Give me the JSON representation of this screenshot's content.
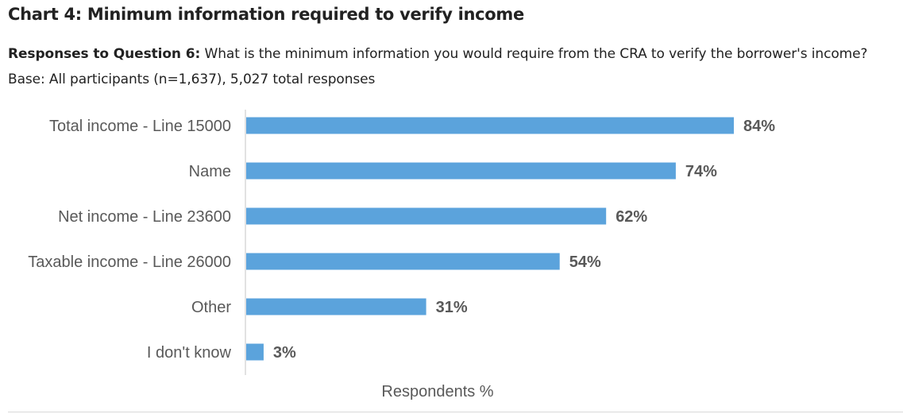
{
  "header": {
    "title": "Chart 4: Minimum information required to verify income",
    "subtitle_lead": "Responses to Question 6:",
    "subtitle_text": "What is the minimum information you would require from the CRA to verify the borrower's income? Base: All participants (n=1,637), 5,027 total responses"
  },
  "chart_data": {
    "type": "bar",
    "orientation": "horizontal",
    "categories": [
      "Total income - Line 15000",
      "Name",
      "Net income - Line 23600",
      "Taxable income - Line 26000",
      "Other",
      "I don't know"
    ],
    "values": [
      84,
      74,
      62,
      54,
      31,
      3
    ],
    "value_labels": [
      "84%",
      "74%",
      "62%",
      "54%",
      "31%",
      "3%"
    ],
    "xlabel": "Respondents %",
    "xlim": [
      0,
      100
    ],
    "grid": false,
    "legend": "none",
    "bar_color": "#5BA3DC"
  }
}
